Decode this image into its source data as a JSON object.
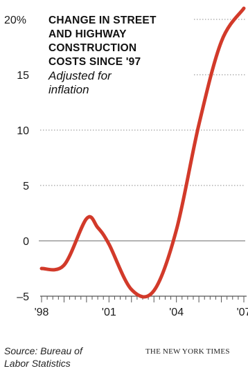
{
  "chart_data": {
    "type": "line",
    "title_lines": [
      "CHANGE IN STREET",
      "AND HIGHWAY",
      "CONSTRUCTION",
      "COSTS SINCE '97"
    ],
    "subtitle_lines": [
      "Adjusted for",
      "inflation"
    ],
    "xlabel": "",
    "ylabel": "",
    "y_ticks": [
      20,
      15,
      10,
      5,
      0,
      -5
    ],
    "y_tick_labels": [
      "20%",
      "15",
      "10",
      "5",
      "0",
      "–5"
    ],
    "ylim": [
      -5,
      21
    ],
    "x_tick_labels": [
      {
        "x": 1998,
        "label": "'98"
      },
      {
        "x": 2001,
        "label": "'01"
      },
      {
        "x": 2004,
        "label": "'04"
      },
      {
        "x": 2007,
        "label": "'07"
      }
    ],
    "xlim": [
      1998,
      2007
    ],
    "grid": "dotted horizontal",
    "series": [
      {
        "x": [
          1998,
          1999,
          2000,
          2000.5,
          2001,
          2002,
          2003,
          2004,
          2005,
          2006,
          2007
        ],
        "values": [
          -2.5,
          -2.2,
          2.0,
          1.2,
          -0.3,
          -4.4,
          -4.5,
          1.0,
          10.5,
          18.0,
          21.0
        ],
        "color": "#d23a2a"
      }
    ],
    "source_lines": [
      "Source: Bureau of",
      "Labor Statistics"
    ],
    "credit": "THE NEW YORK TIMES"
  }
}
